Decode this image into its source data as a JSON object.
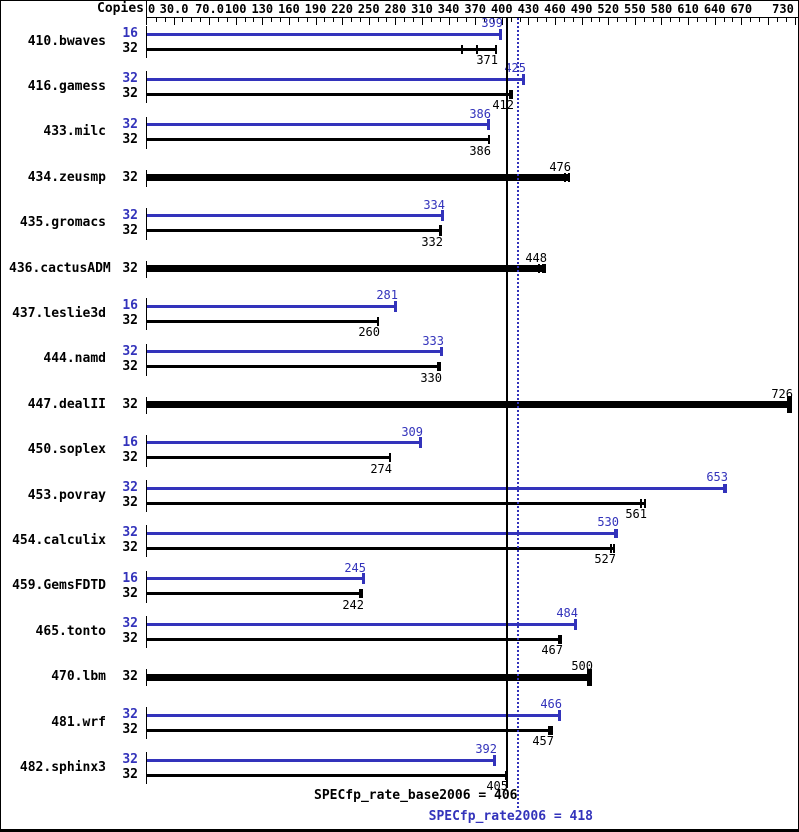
{
  "header": {
    "copies_label": "Copies"
  },
  "footer": {
    "base_score_label": "SPECfp_rate_base2006 = 406",
    "peak_score_label": "SPECfp_rate2006 = 418"
  },
  "colors": {
    "peak_blue": "#3333bb",
    "base_black": "#000000",
    "background": "#ffffff"
  },
  "chart_data": {
    "type": "bar",
    "orientation": "horizontal",
    "title": "",
    "xlabel": "",
    "ylabel": "Copies",
    "xlim": [
      0,
      736
    ],
    "grid": false,
    "axis_tick_labels": [
      {
        "value": 0,
        "text": "0"
      },
      {
        "value": 30,
        "text": "30.0"
      },
      {
        "value": 70,
        "text": "70.0"
      },
      {
        "value": 100,
        "text": "100"
      },
      {
        "value": 130,
        "text": "130"
      },
      {
        "value": 160,
        "text": "160"
      },
      {
        "value": 190,
        "text": "190"
      },
      {
        "value": 220,
        "text": "220"
      },
      {
        "value": 250,
        "text": "250"
      },
      {
        "value": 280,
        "text": "280"
      },
      {
        "value": 310,
        "text": "310"
      },
      {
        "value": 340,
        "text": "340"
      },
      {
        "value": 370,
        "text": "370"
      },
      {
        "value": 400,
        "text": "400"
      },
      {
        "value": 430,
        "text": "430"
      },
      {
        "value": 460,
        "text": "460"
      },
      {
        "value": 490,
        "text": "490"
      },
      {
        "value": 520,
        "text": "520"
      },
      {
        "value": 550,
        "text": "550"
      },
      {
        "value": 580,
        "text": "580"
      },
      {
        "value": 610,
        "text": "610"
      },
      {
        "value": 640,
        "text": "640"
      },
      {
        "value": 670,
        "text": "670"
      },
      {
        "value": 730,
        "text": "730"
      }
    ],
    "major_tick_values": [
      30,
      70,
      100,
      130,
      160,
      190,
      220,
      250,
      280,
      310,
      340,
      370,
      400,
      430,
      460,
      490,
      520,
      550,
      580,
      610,
      640,
      670,
      700,
      730
    ],
    "minor_tick_step": 10,
    "reference_lines": {
      "base": {
        "value": 406,
        "style": "solid"
      },
      "peak": {
        "value": 418,
        "style": "dotted"
      }
    },
    "benchmarks": [
      {
        "name": "410.bwaves",
        "bars": [
          {
            "kind": "peak",
            "copies": 16,
            "value": 399,
            "cap": "T"
          },
          {
            "kind": "base",
            "copies": 32,
            "value": 371,
            "bar_to": 393,
            "marks": [
              354,
              371
            ],
            "cap": "tick"
          }
        ]
      },
      {
        "name": "416.gamess",
        "bars": [
          {
            "kind": "peak",
            "copies": 32,
            "value": 425,
            "cap": "T"
          },
          {
            "kind": "base",
            "copies": 32,
            "value": 412,
            "marks": [
              408
            ],
            "cap": "tick"
          }
        ]
      },
      {
        "name": "433.milc",
        "bars": [
          {
            "kind": "peak",
            "copies": 32,
            "value": 386,
            "cap": "T"
          },
          {
            "kind": "base",
            "copies": 32,
            "value": 386,
            "cap": "tick"
          }
        ]
      },
      {
        "name": "434.zeusmp",
        "bars": [
          {
            "kind": "single",
            "copies": 32,
            "value": 476,
            "marks": [
              470
            ],
            "cap": "tick"
          }
        ]
      },
      {
        "name": "435.gromacs",
        "bars": [
          {
            "kind": "peak",
            "copies": 32,
            "value": 334,
            "cap": "T"
          },
          {
            "kind": "base",
            "copies": 32,
            "value": 332,
            "cap": "T"
          }
        ]
      },
      {
        "name": "436.cactusADM",
        "bars": [
          {
            "kind": "single",
            "copies": 32,
            "value": 448,
            "bar_to": 449,
            "marks": [
              441,
              445
            ],
            "cap": "tick"
          }
        ]
      },
      {
        "name": "437.leslie3d",
        "bars": [
          {
            "kind": "peak",
            "copies": 16,
            "value": 281,
            "cap": "T"
          },
          {
            "kind": "base",
            "copies": 32,
            "value": 260,
            "cap": "tick"
          }
        ]
      },
      {
        "name": "444.namd",
        "bars": [
          {
            "kind": "peak",
            "copies": 32,
            "value": 333,
            "marks": [
              330
            ],
            "cap": "tick"
          },
          {
            "kind": "base",
            "copies": 32,
            "value": 330,
            "marks": [
              327
            ],
            "cap": "tick"
          }
        ]
      },
      {
        "name": "447.dealII",
        "bars": [
          {
            "kind": "single",
            "copies": 32,
            "value": 726,
            "cap": "big"
          }
        ]
      },
      {
        "name": "450.soplex",
        "bars": [
          {
            "kind": "peak",
            "copies": 16,
            "value": 309,
            "cap": "T"
          },
          {
            "kind": "base",
            "copies": 32,
            "value": 274,
            "cap": "tick"
          }
        ]
      },
      {
        "name": "453.povray",
        "bars": [
          {
            "kind": "peak",
            "copies": 32,
            "value": 653,
            "marks": [
              649
            ],
            "cap": "tick"
          },
          {
            "kind": "base",
            "copies": 32,
            "value": 561,
            "marks": [
              556
            ],
            "cap": "tick"
          }
        ]
      },
      {
        "name": "454.calculix",
        "bars": [
          {
            "kind": "peak",
            "copies": 32,
            "value": 530,
            "marks": [
              527
            ],
            "cap": "tick"
          },
          {
            "kind": "base",
            "copies": 32,
            "value": 527,
            "marks": [
              522
            ],
            "cap": "tick"
          }
        ]
      },
      {
        "name": "459.GemsFDTD",
        "bars": [
          {
            "kind": "peak",
            "copies": 16,
            "value": 245,
            "cap": "T"
          },
          {
            "kind": "base",
            "copies": 32,
            "value": 242,
            "marks": [
              239
            ],
            "cap": "tick"
          }
        ]
      },
      {
        "name": "465.tonto",
        "bars": [
          {
            "kind": "peak",
            "copies": 32,
            "value": 484,
            "cap": "T"
          },
          {
            "kind": "base",
            "copies": 32,
            "value": 467,
            "marks": [
              463
            ],
            "cap": "tick"
          }
        ]
      },
      {
        "name": "470.lbm",
        "bars": [
          {
            "kind": "single",
            "copies": 32,
            "value": 500,
            "cap": "big"
          }
        ]
      },
      {
        "name": "481.wrf",
        "bars": [
          {
            "kind": "peak",
            "copies": 32,
            "value": 466,
            "cap": "T"
          },
          {
            "kind": "base",
            "copies": 32,
            "value": 457,
            "marks": [
              452,
              454
            ],
            "cap": "tick"
          }
        ]
      },
      {
        "name": "482.sphinx3",
        "bars": [
          {
            "kind": "peak",
            "copies": 32,
            "value": 392,
            "cap": "T"
          },
          {
            "kind": "base",
            "copies": 32,
            "value": 405,
            "cap": "tick"
          }
        ]
      }
    ]
  }
}
